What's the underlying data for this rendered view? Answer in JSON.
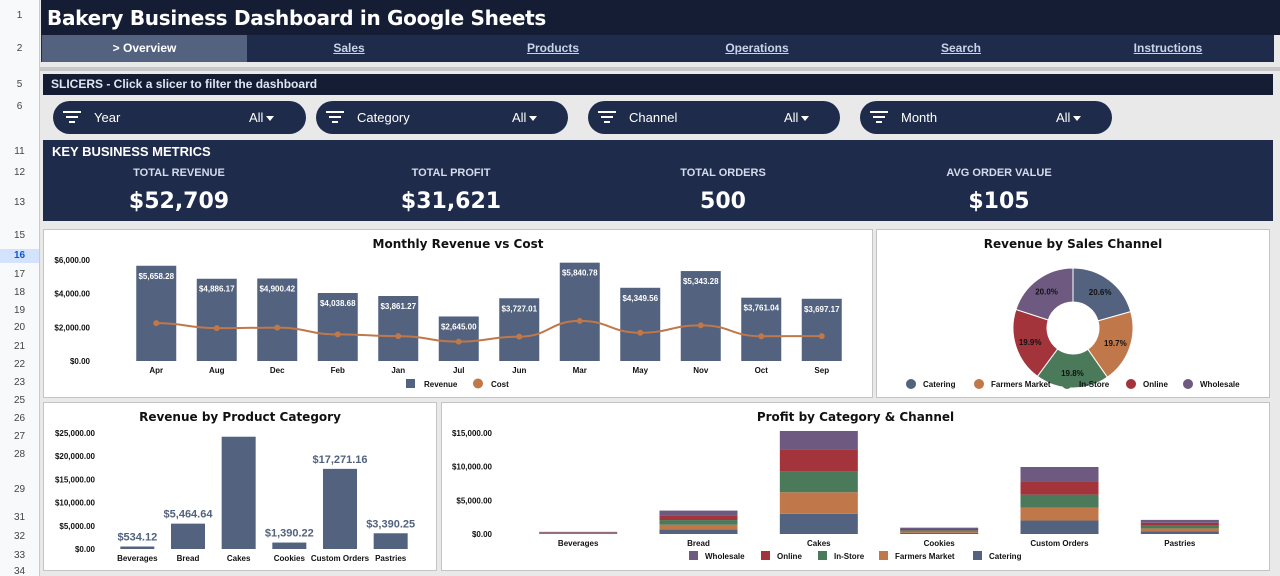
{
  "app": {
    "title": "Bakery Business Dashboard in Google Sheets"
  },
  "row_numbers": [
    "1",
    "2",
    "5",
    "6",
    "11",
    "12",
    "13",
    "15",
    "16",
    "17",
    "18",
    "19",
    "20",
    "21",
    "22",
    "23",
    "25",
    "26",
    "27",
    "28",
    "29",
    "31",
    "32",
    "33",
    "34"
  ],
  "nav": {
    "tabs": [
      {
        "label": "> Overview",
        "active": true
      },
      {
        "label": "Sales",
        "active": false
      },
      {
        "label": "Products",
        "active": false
      },
      {
        "label": "Operations",
        "active": false
      },
      {
        "label": "Search",
        "active": false
      },
      {
        "label": "Instructions",
        "active": false
      }
    ]
  },
  "slicers": {
    "header": "SLICERS - Click a slicer to filter the dashboard",
    "items": [
      {
        "label": "Year",
        "value": "All"
      },
      {
        "label": "Category",
        "value": "All"
      },
      {
        "label": "Channel",
        "value": "All"
      },
      {
        "label": "Month",
        "value": "All"
      }
    ]
  },
  "kpis": {
    "title": "KEY BUSINESS METRICS",
    "items": [
      {
        "label": "TOTAL REVENUE",
        "value": "$52,709"
      },
      {
        "label": "TOTAL PROFIT",
        "value": "$31,621"
      },
      {
        "label": "TOTAL ORDERS",
        "value": "500"
      },
      {
        "label": "AVG ORDER VALUE",
        "value": "$105"
      }
    ]
  },
  "colors": {
    "title_bg": "#141d33",
    "panel_bg": "#1f2b4a",
    "bar": "#52627f",
    "cost_line": "#c0784a",
    "catering": "#52627f",
    "farmers_market": "#c0784a",
    "in_store": "#4a7a5a",
    "online": "#a3343c",
    "wholesale": "#6e5a80"
  },
  "chart_data": [
    {
      "id": "monthly",
      "type": "bar",
      "title": "Monthly Revenue vs Cost",
      "categories": [
        "Apr",
        "Aug",
        "Dec",
        "Feb",
        "Jan",
        "Jul",
        "Jun",
        "Mar",
        "May",
        "Nov",
        "Oct",
        "Sep"
      ],
      "series": [
        {
          "name": "Revenue",
          "type": "bar",
          "values": [
            5658.28,
            4886.17,
            4900.42,
            4038.68,
            3861.27,
            2645.0,
            3727.01,
            5840.78,
            4349.56,
            5343.28,
            3761.04,
            3697.17
          ]
        },
        {
          "name": "Cost",
          "type": "line",
          "values": [
            2250,
            1950,
            1980,
            1580,
            1480,
            1150,
            1450,
            2380,
            1680,
            2120,
            1470,
            1480
          ]
        }
      ],
      "data_labels": [
        "$5,658.28",
        "$4,886.17",
        "$4,900.42",
        "$4,038.68",
        "$3,861.27",
        "$2,645.00",
        "$3,727.01",
        "$5,840.78",
        "$4,349.56",
        "$5,343.28",
        "$3,761.04",
        "$3,697.17"
      ],
      "yticks": [
        "$0.00",
        "$2,000.00",
        "$4,000.00",
        "$6,000.00"
      ],
      "ylim": [
        0,
        6000
      ],
      "legend": "bottom"
    },
    {
      "id": "channel",
      "type": "pie",
      "title": "Revenue by Sales Channel",
      "categories": [
        "Catering",
        "Farmers Market",
        "In-Store",
        "Online",
        "Wholesale"
      ],
      "values": [
        20.6,
        19.7,
        19.8,
        19.9,
        20.0
      ],
      "labels": [
        "20.6%",
        "19.7%",
        "19.8%",
        "19.9%",
        "20.0%"
      ],
      "legend": "bottom"
    },
    {
      "id": "category",
      "type": "bar",
      "title": "Revenue by Product Category",
      "categories": [
        "Beverages",
        "Bread",
        "Cakes",
        "Cookies",
        "Custom Orders",
        "Pastries"
      ],
      "values": [
        534.12,
        5464.64,
        24200,
        1390.22,
        17271.16,
        3390.25
      ],
      "data_labels": [
        "$534.12",
        "$5,464.64",
        "",
        "$1,390.22",
        "$17,271.16",
        "$3,390.25"
      ],
      "yticks": [
        "$0.00",
        "$5,000.00",
        "$10,000.00",
        "$15,000.00",
        "$20,000.00",
        "$25,000.00"
      ],
      "ylim": [
        0,
        25000
      ]
    },
    {
      "id": "profit",
      "type": "bar",
      "stacked": true,
      "title": "Profit by Category & Channel",
      "categories": [
        "Beverages",
        "Bread",
        "Cakes",
        "Cookies",
        "Custom Orders",
        "Pastries"
      ],
      "series": [
        {
          "name": "Catering",
          "values": [
            70,
            700,
            3000,
            190,
            2000,
            420
          ]
        },
        {
          "name": "Farmers Market",
          "values": [
            60,
            680,
            3200,
            180,
            1900,
            410
          ]
        },
        {
          "name": "In-Store",
          "values": [
            60,
            690,
            3100,
            185,
            1950,
            415
          ]
        },
        {
          "name": "Online",
          "values": [
            65,
            700,
            3300,
            190,
            2000,
            420
          ]
        },
        {
          "name": "Wholesale",
          "values": [
            65,
            710,
            2700,
            195,
            2100,
            430
          ]
        }
      ],
      "legend_order": [
        "Wholesale",
        "Online",
        "In-Store",
        "Farmers Market",
        "Catering"
      ],
      "yticks": [
        "$0.00",
        "$5,000.00",
        "$10,000.00",
        "$15,000.00"
      ],
      "ylim": [
        0,
        15000
      ]
    }
  ]
}
